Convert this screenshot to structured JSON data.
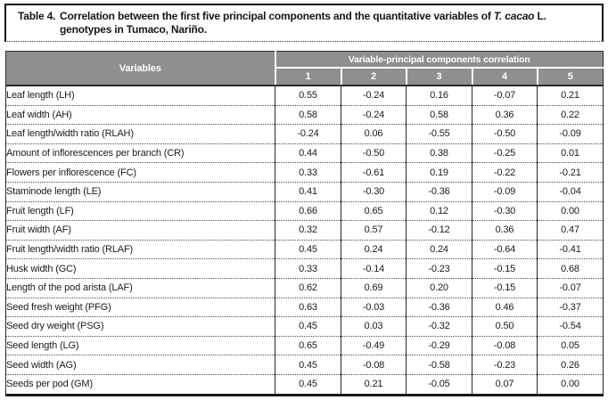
{
  "caption": {
    "label": "Table 4.",
    "text_part1": "Correlation between the first five principal components and the quantitative variables of ",
    "species": "T. cacao",
    "text_part2": " L. genotypes in Tumaco, Nariño."
  },
  "table": {
    "variables_header": "Variables",
    "group_header": "Variable-principal components correlation",
    "component_headers": [
      "1",
      "2",
      "3",
      "4",
      "5"
    ],
    "rows": [
      {
        "variable": "Leaf length (LH)",
        "values": [
          "0.55",
          "-0.24",
          "0.16",
          "-0.07",
          "0.21"
        ]
      },
      {
        "variable": "Leaf width (AH)",
        "values": [
          "0.58",
          "-0.24",
          "0.58",
          "0.36",
          "0.22"
        ]
      },
      {
        "variable": "Leaf length/width ratio (RLAH)",
        "values": [
          "-0.24",
          "0.06",
          "-0.55",
          "-0.50",
          "-0.09"
        ]
      },
      {
        "variable": "Amount of inflorescences per branch (CR)",
        "values": [
          "0.44",
          "-0.50",
          "0.38",
          "-0.25",
          "0.01"
        ]
      },
      {
        "variable": "Flowers per inflorescence (FC)",
        "values": [
          "0.33",
          "-0.61",
          "0.19",
          "-0.22",
          "-0.21"
        ]
      },
      {
        "variable": "Staminode length (LE)",
        "values": [
          "0.41",
          "-0.30",
          "-0.36",
          "-0.09",
          "-0.04"
        ]
      },
      {
        "variable": "Fruit length (LF)",
        "values": [
          "0.66",
          "0.65",
          "0.12",
          "-0.30",
          "0.00"
        ]
      },
      {
        "variable": "Fruit width (AF)",
        "values": [
          "0.32",
          "0.57",
          "-0.12",
          "0.36",
          "0.47"
        ]
      },
      {
        "variable": "Fruit length/width ratio (RLAF)",
        "values": [
          "0.45",
          "0.24",
          "0.24",
          "-0.64",
          "-0.41"
        ]
      },
      {
        "variable": "Husk width (GC)",
        "values": [
          "0.33",
          "-0.14",
          "-0.23",
          "-0.15",
          "0.68"
        ]
      },
      {
        "variable": "Length of the pod arista (LAF)",
        "values": [
          "0.62",
          "0.69",
          "0.20",
          "-0.15",
          "-0.07"
        ]
      },
      {
        "variable": "Seed fresh weight (PFG)",
        "values": [
          "0.63",
          "-0.03",
          "-0.36",
          "0.46",
          "-0.37"
        ]
      },
      {
        "variable": "Seed dry weight (PSG)",
        "values": [
          "0.45",
          "0.03",
          "-0.32",
          "0.50",
          "-0.54"
        ]
      },
      {
        "variable": "Seed length (LG)",
        "values": [
          "0.65",
          "-0.49",
          "-0.29",
          "-0.08",
          "0.05"
        ]
      },
      {
        "variable": "Seed width (AG)",
        "values": [
          "0.45",
          "-0.08",
          "-0.58",
          "-0.23",
          "0.26"
        ]
      },
      {
        "variable": "Seeds per pod (GM)",
        "values": [
          "0.45",
          "0.21",
          "-0.05",
          "0.07",
          "0.00"
        ]
      }
    ]
  },
  "colors": {
    "header_bg": "#8f8f8f",
    "header_text": "#ffffff",
    "body_text": "#1b1b1b",
    "border": "#2a2a2a"
  }
}
